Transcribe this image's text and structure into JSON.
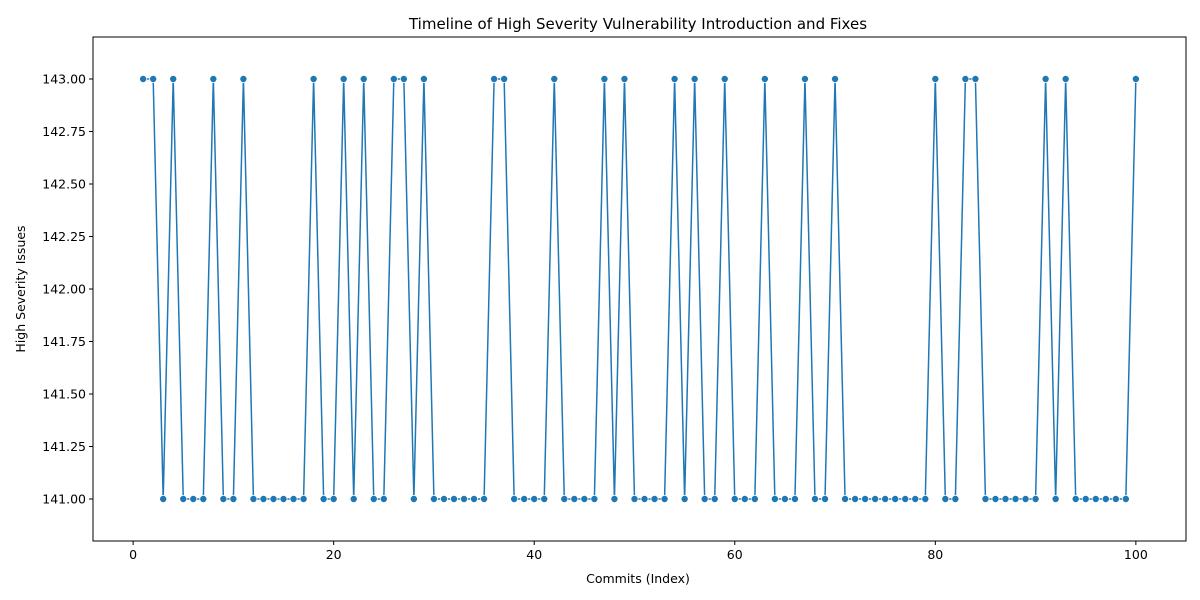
{
  "chart_data": {
    "type": "line",
    "title": "Timeline of High Severity Vulnerability Introduction and Fixes",
    "xlabel": "Commits (Index)",
    "ylabel": "High Severity Issues",
    "xlim": [
      -4,
      105
    ],
    "ylim": [
      140.8,
      143.2
    ],
    "xticks": [
      0,
      20,
      40,
      60,
      80,
      100
    ],
    "yticks": [
      141.0,
      141.25,
      141.5,
      141.75,
      142.0,
      142.25,
      142.5,
      142.75,
      143.0
    ],
    "xtick_labels": [
      "0",
      "20",
      "40",
      "60",
      "80",
      "100"
    ],
    "ytick_labels": [
      "141.00",
      "141.25",
      "141.50",
      "141.75",
      "142.00",
      "142.25",
      "142.50",
      "142.75",
      "143.00"
    ],
    "grid": false,
    "markers": true,
    "color": "#1f77b4",
    "x": [
      1,
      2,
      3,
      4,
      5,
      6,
      7,
      8,
      9,
      10,
      11,
      12,
      13,
      14,
      15,
      16,
      17,
      18,
      19,
      20,
      21,
      22,
      23,
      24,
      25,
      26,
      27,
      28,
      29,
      30,
      31,
      32,
      33,
      34,
      35,
      36,
      37,
      38,
      39,
      40,
      41,
      42,
      43,
      44,
      45,
      46,
      47,
      48,
      49,
      50,
      51,
      52,
      53,
      54,
      55,
      56,
      57,
      58,
      59,
      60,
      61,
      62,
      63,
      64,
      65,
      66,
      67,
      68,
      69,
      70,
      71,
      72,
      73,
      74,
      75,
      76,
      77,
      78,
      79,
      80,
      81,
      82,
      83,
      84,
      85,
      86,
      87,
      88,
      89,
      90,
      91,
      92,
      93,
      94,
      95,
      96,
      97,
      98,
      99,
      100
    ],
    "y": [
      143,
      143,
      141,
      143,
      141,
      141,
      141,
      143,
      141,
      141,
      143,
      141,
      141,
      141,
      141,
      141,
      141,
      143,
      141,
      141,
      143,
      141,
      143,
      141,
      141,
      143,
      143,
      141,
      143,
      141,
      141,
      141,
      141,
      141,
      141,
      143,
      143,
      141,
      141,
      141,
      141,
      143,
      141,
      141,
      141,
      141,
      143,
      141,
      143,
      141,
      141,
      141,
      141,
      143,
      141,
      143,
      141,
      141,
      143,
      141,
      141,
      141,
      143,
      141,
      141,
      141,
      143,
      141,
      141,
      143,
      141,
      141,
      141,
      141,
      141,
      141,
      141,
      141,
      141,
      143,
      141,
      141,
      143,
      143,
      141,
      141,
      141,
      141,
      141,
      141,
      143,
      141,
      143,
      141,
      141,
      141,
      141,
      141,
      141,
      143
    ]
  }
}
